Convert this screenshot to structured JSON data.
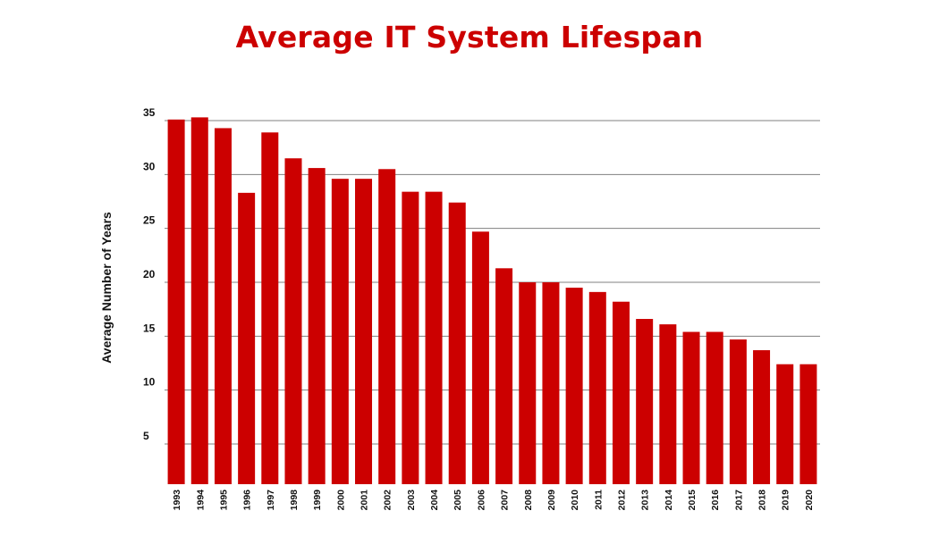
{
  "chart_data": {
    "type": "bar",
    "title": "Average IT System Lifespan",
    "xlabel": "",
    "ylabel": "Average Number of Years",
    "yticks": [
      "5",
      "10",
      "15",
      "20",
      "25",
      "30",
      "35"
    ],
    "ylim": [
      1.5,
      36
    ],
    "grid": true,
    "categories": [
      "1993",
      "1994",
      "1995",
      "1996",
      "1997",
      "1998",
      "1999",
      "2000",
      "2001",
      "2002",
      "2003",
      "2004",
      "2005",
      "2006",
      "2007",
      "2008",
      "2009",
      "2010",
      "2011",
      "2012",
      "2013",
      "2014",
      "2015",
      "2016",
      "2017",
      "2018",
      "2019",
      "2020"
    ],
    "values": [
      35.1,
      35.3,
      34.3,
      28.3,
      33.9,
      31.5,
      30.6,
      29.6,
      29.6,
      30.5,
      28.4,
      28.4,
      27.4,
      24.7,
      21.3,
      20.0,
      20.0,
      19.5,
      19.1,
      18.2,
      16.6,
      16.1,
      15.4,
      15.4,
      14.7,
      13.7,
      12.4,
      12.4
    ]
  },
  "colors": {
    "bar": "#cc0000",
    "title": "#cc0000",
    "grid": "#808080",
    "text": "#111111"
  }
}
